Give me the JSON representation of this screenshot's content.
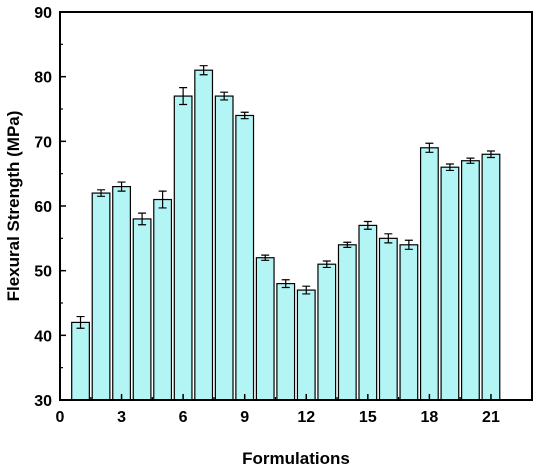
{
  "chart_data": {
    "type": "bar",
    "xlabel": "Formulations",
    "ylabel": "Flexural Strength (MPa)",
    "xlim": [
      0,
      23
    ],
    "ylim": [
      30,
      90
    ],
    "xticks": [
      0,
      3,
      6,
      9,
      12,
      15,
      18,
      21
    ],
    "yticks": [
      30,
      40,
      50,
      60,
      70,
      80,
      90
    ],
    "categories": [
      1,
      2,
      3,
      4,
      5,
      6,
      7,
      8,
      9,
      10,
      11,
      12,
      13,
      14,
      15,
      16,
      17,
      18,
      19,
      20,
      21
    ],
    "values": [
      42,
      62,
      63,
      58,
      61,
      77,
      81,
      77,
      74,
      52,
      48,
      47,
      51,
      54,
      57,
      55,
      54,
      69,
      66,
      67,
      68
    ],
    "errors": [
      0.9,
      0.5,
      0.7,
      0.9,
      1.3,
      1.3,
      0.7,
      0.6,
      0.5,
      0.4,
      0.6,
      0.6,
      0.5,
      0.4,
      0.6,
      0.7,
      0.7,
      0.7,
      0.5,
      0.4,
      0.5
    ],
    "grid": false,
    "bar_color": "#B3F5F5",
    "edge_color": "#000000"
  }
}
